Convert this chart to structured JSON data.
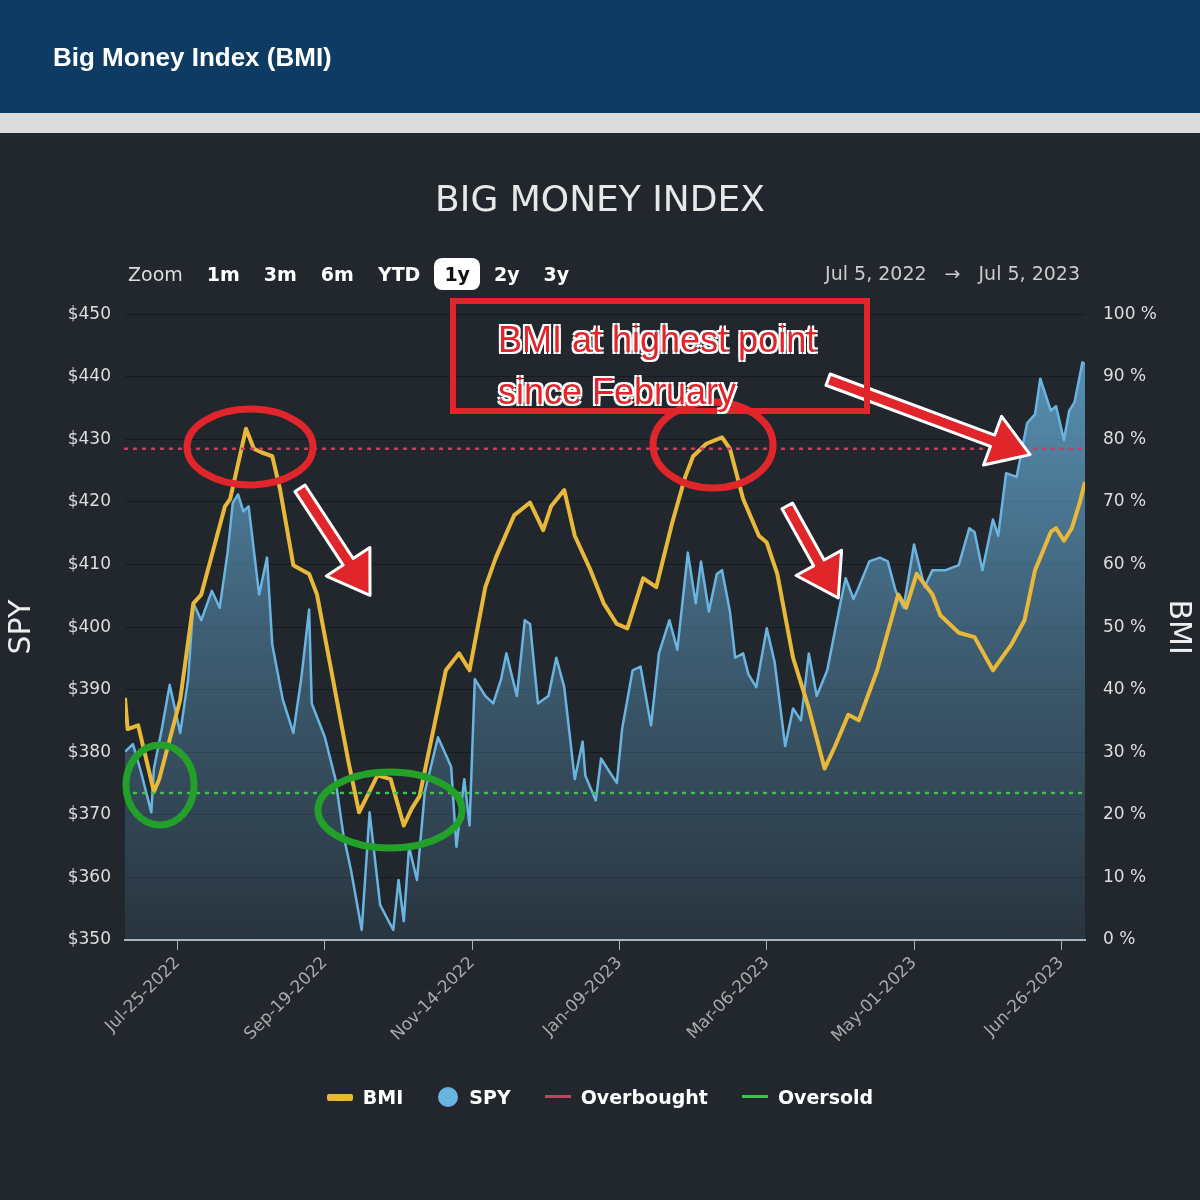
{
  "chart_data": {
    "type": "line",
    "title": "Big Money Index (BMI)",
    "subtitle": "BIG MONEY INDEX",
    "ylabel": "SPY",
    "y2label": "BMI",
    "annotations": [
      "BMI at highest point since February",
      "Zoom",
      "1m",
      "3m",
      "6m",
      "YTD",
      "1y",
      "2y",
      "3y",
      "Jul 5, 2022",
      "→",
      "Jul 5, 2023"
    ],
    "xlim": [
      "2022-07-05",
      "2023-07-05"
    ],
    "xticks": [
      {
        "value": "2022-07-25",
        "label": "Jul-25-2022"
      },
      {
        "value": "2022-09-19",
        "label": "Sep-19-2022"
      },
      {
        "value": "2022-11-14",
        "label": "Nov-14-2022"
      },
      {
        "value": "2023-01-09",
        "label": "Jan-09-2023"
      },
      {
        "value": "2023-03-06",
        "label": "Mar-06-2023"
      },
      {
        "value": "2023-05-01",
        "label": "May-01-2023"
      },
      {
        "value": "2023-06-26",
        "label": "Jun-26-2023"
      }
    ],
    "ylim": [
      350,
      450
    ],
    "yticks": [
      {
        "value": 350,
        "label": "$350"
      },
      {
        "value": 360,
        "label": "$360"
      },
      {
        "value": 370,
        "label": "$370"
      },
      {
        "value": 380,
        "label": "$380"
      },
      {
        "value": 390,
        "label": "$390"
      },
      {
        "value": 400,
        "label": "$400"
      },
      {
        "value": 410,
        "label": "$410"
      },
      {
        "value": 420,
        "label": "$420"
      },
      {
        "value": 430,
        "label": "$430"
      },
      {
        "value": 440,
        "label": "$440"
      },
      {
        "value": 450,
        "label": "$450"
      }
    ],
    "y2lim": [
      0,
      100
    ],
    "y2ticks": [
      {
        "value": 0,
        "label": "0 %"
      },
      {
        "value": 10,
        "label": "10 %"
      },
      {
        "value": 20,
        "label": "20 %"
      },
      {
        "value": 30,
        "label": "30 %"
      },
      {
        "value": 40,
        "label": "40 %"
      },
      {
        "value": 50,
        "label": "50 %"
      },
      {
        "value": 60,
        "label": "60 %"
      },
      {
        "value": 70,
        "label": "70 %"
      },
      {
        "value": 80,
        "label": "80 %"
      },
      {
        "value": 90,
        "label": "90 %"
      },
      {
        "value": 100,
        "label": "100 %"
      }
    ],
    "grid": "y",
    "legend": "bottom",
    "marker": "none",
    "ref_lines": [
      {
        "axis": "y2",
        "value": 78.5,
        "label": "Overbought",
        "color": "#c8405f",
        "line_style": "dotted"
      },
      {
        "axis": "y2",
        "value": 23.5,
        "label": "Oversold",
        "color": "#3ec44a",
        "line_style": "dotted"
      }
    ],
    "series": [
      {
        "name": "BMI",
        "type": "line",
        "axis": "y2",
        "color": "#e8b83a",
        "x": [
          "2022-07-05",
          "2022-07-06",
          "2022-07-10",
          "2022-07-16",
          "2022-07-18",
          "2022-07-26",
          "2022-07-31",
          "2022-08-03",
          "2022-08-12",
          "2022-08-14",
          "2022-08-20",
          "2022-08-23",
          "2022-08-26",
          "2022-08-30",
          "2022-09-02",
          "2022-09-07",
          "2022-09-13",
          "2022-09-16",
          "2022-09-28",
          "2022-10-02",
          "2022-10-09",
          "2022-10-14",
          "2022-10-19",
          "2022-10-22",
          "2022-10-25",
          "2022-10-31",
          "2022-11-04",
          "2022-11-09",
          "2022-11-13",
          "2022-11-19",
          "2022-11-23",
          "2022-11-30",
          "2022-12-06",
          "2022-12-11",
          "2022-12-14",
          "2022-12-19",
          "2022-12-23",
          "2022-12-29",
          "2023-01-03",
          "2023-01-08",
          "2023-01-12",
          "2023-01-18",
          "2023-01-23",
          "2023-01-29",
          "2023-02-03",
          "2023-02-06",
          "2023-02-11",
          "2023-02-17",
          "2023-02-20",
          "2023-02-25",
          "2023-03-03",
          "2023-03-06",
          "2023-03-10",
          "2023-03-16",
          "2023-03-22",
          "2023-03-28",
          "2023-04-01",
          "2023-04-06",
          "2023-04-10",
          "2023-04-17",
          "2023-04-25",
          "2023-04-28",
          "2023-05-02",
          "2023-05-08",
          "2023-05-11",
          "2023-05-18",
          "2023-05-24",
          "2023-05-31",
          "2023-06-07",
          "2023-06-12",
          "2023-06-16",
          "2023-06-22",
          "2023-06-24",
          "2023-06-27",
          "2023-06-30",
          "2023-07-03",
          "2023-07-05"
        ],
        "values": [
          38.7,
          33.7,
          34.3,
          23.7,
          25.7,
          38.4,
          53.8,
          55.2,
          69.3,
          70.5,
          81.7,
          78.5,
          77.9,
          77.3,
          71.9,
          59.9,
          58.5,
          55.2,
          28.4,
          20.4,
          26.3,
          25.7,
          18.3,
          21,
          23,
          35.1,
          43.1,
          45.8,
          43.1,
          56.4,
          61.1,
          67.9,
          69.9,
          65.5,
          69.3,
          71.9,
          64.6,
          59.1,
          53.8,
          50.5,
          49.8,
          57.8,
          56.4,
          66.6,
          74,
          77.3,
          79.3,
          80.3,
          78.5,
          70.5,
          64.6,
          63.5,
          58.5,
          45.1,
          37,
          27.4,
          31,
          36,
          35.1,
          43.1,
          55.2,
          53.1,
          58.5,
          55.2,
          51.9,
          49.1,
          48.4,
          43.1,
          47.2,
          51.1,
          59.1,
          65.2,
          65.8,
          63.8,
          65.8,
          69.9,
          73.2
        ]
      },
      {
        "name": "SPY",
        "type": "area",
        "color": "#6ab4e0",
        "x": [
          "2022-07-05",
          "2022-07-08",
          "2022-07-11",
          "2022-07-15",
          "2022-07-16",
          "2022-07-19",
          "2022-07-22",
          "2022-07-26",
          "2022-07-29",
          "2022-07-31",
          "2022-08-03",
          "2022-08-07",
          "2022-08-10",
          "2022-08-13",
          "2022-08-15",
          "2022-08-17",
          "2022-08-19",
          "2022-08-21",
          "2022-08-25",
          "2022-08-28",
          "2022-08-30",
          "2022-09-03",
          "2022-09-07",
          "2022-09-10",
          "2022-09-13",
          "2022-09-14",
          "2022-09-19",
          "2022-09-23",
          "2022-09-26",
          "2022-09-29",
          "2022-10-03",
          "2022-10-06",
          "2022-10-10",
          "2022-10-15",
          "2022-10-17",
          "2022-10-19",
          "2022-10-21",
          "2022-10-24",
          "2022-10-27",
          "2022-11-01",
          "2022-11-06",
          "2022-11-08",
          "2022-11-11",
          "2022-11-13",
          "2022-11-15",
          "2022-11-19",
          "2022-11-22",
          "2022-11-25",
          "2022-11-27",
          "2022-12-01",
          "2022-12-04",
          "2022-12-06",
          "2022-12-09",
          "2022-12-13",
          "2022-12-16",
          "2022-12-19",
          "2022-12-23",
          "2022-12-26",
          "2022-12-27",
          "2022-12-31",
          "2023-01-02",
          "2023-01-05",
          "2023-01-08",
          "2023-01-10",
          "2023-01-14",
          "2023-01-17",
          "2023-01-21",
          "2023-01-24",
          "2023-01-28",
          "2023-01-31",
          "2023-02-04",
          "2023-02-07",
          "2023-02-09",
          "2023-02-12",
          "2023-02-15",
          "2023-02-17",
          "2023-02-20",
          "2023-02-22",
          "2023-02-25",
          "2023-02-27",
          "2023-03-02",
          "2023-03-06",
          "2023-03-09",
          "2023-03-13",
          "2023-03-16",
          "2023-03-19",
          "2023-03-22",
          "2023-03-25",
          "2023-03-29",
          "2023-04-03",
          "2023-04-05",
          "2023-04-08",
          "2023-04-10",
          "2023-04-14",
          "2023-04-18",
          "2023-04-21",
          "2023-04-24",
          "2023-04-27",
          "2023-05-01",
          "2023-05-05",
          "2023-05-08",
          "2023-05-13",
          "2023-05-18",
          "2023-05-22",
          "2023-05-24",
          "2023-05-27",
          "2023-05-31",
          "2023-06-02",
          "2023-06-05",
          "2023-06-09",
          "2023-06-13",
          "2023-06-16",
          "2023-06-18",
          "2023-06-22",
          "2023-06-24",
          "2023-06-27",
          "2023-06-29",
          "2023-07-01",
          "2023-07-04",
          "2023-07-05"
        ],
        "values": [
          380.1,
          381.3,
          377,
          370.4,
          377.4,
          383.7,
          390.8,
          383.1,
          391.7,
          403.8,
          401.1,
          405.8,
          403.1,
          411.9,
          419.9,
          421.2,
          418.5,
          419.3,
          405.2,
          411.1,
          397.2,
          388.4,
          383.1,
          391.7,
          402.8,
          387.8,
          382.4,
          375.7,
          366.9,
          361,
          351.6,
          370.4,
          355.6,
          351.6,
          359.6,
          353,
          364.9,
          359.6,
          373.7,
          382.4,
          377.7,
          364.9,
          375.7,
          368.3,
          391.7,
          389,
          387.8,
          391.7,
          395.8,
          389,
          401.1,
          400.5,
          387.8,
          389,
          395.1,
          390.4,
          375.7,
          381.7,
          376.3,
          372.3,
          379,
          377,
          375.1,
          383.7,
          393.1,
          393.7,
          384.3,
          395.8,
          401.1,
          396.4,
          411.9,
          403.8,
          410.5,
          402.5,
          408.5,
          409.1,
          402.5,
          395.1,
          395.8,
          392.5,
          390.4,
          399.8,
          394.4,
          381,
          387,
          385.1,
          395.8,
          389,
          393.1,
          403.8,
          407.8,
          404.5,
          406.4,
          410.5,
          411.1,
          410.5,
          405.8,
          403.1,
          413.2,
          406.4,
          409.1,
          409.1,
          409.9,
          415.8,
          415.2,
          409.1,
          417.2,
          414.6,
          424.6,
          424,
          432.6,
          434,
          439.7,
          434.6,
          435.3,
          429.9,
          434.6,
          435.9,
          442.3,
          442
        ]
      }
    ]
  }
}
